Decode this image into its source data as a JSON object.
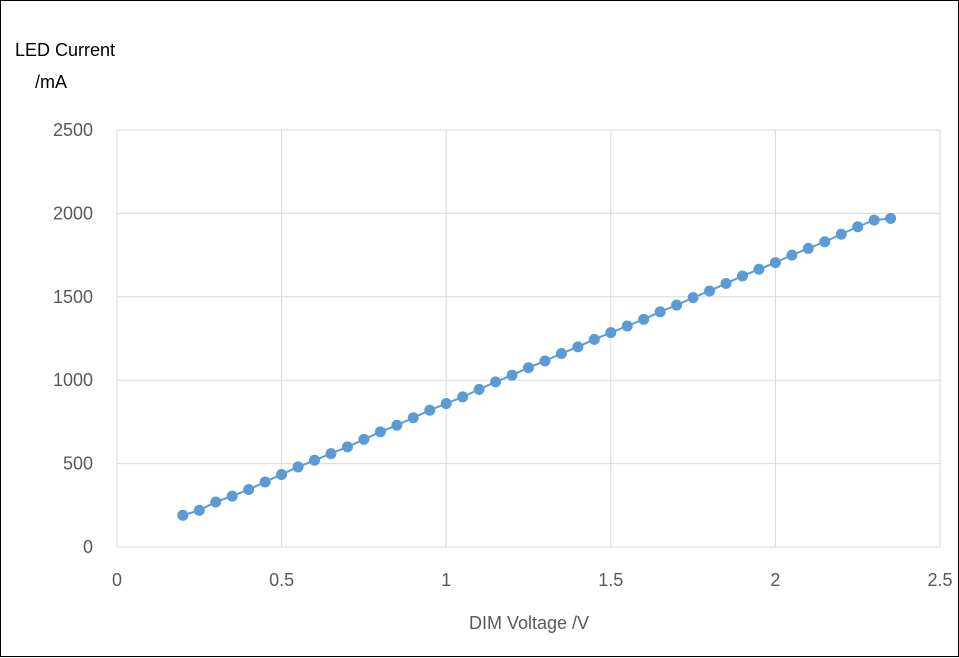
{
  "chart_data": {
    "type": "scatter",
    "title": "",
    "xlabel": "DIM Voltage /V",
    "ylabel_lines": [
      "LED Current",
      "/mA"
    ],
    "xlim": [
      0,
      2.5
    ],
    "ylim": [
      0,
      2500
    ],
    "xticks": [
      0,
      0.5,
      1,
      1.5,
      2,
      2.5
    ],
    "yticks": [
      0,
      500,
      1000,
      1500,
      2000,
      2500
    ],
    "xtick_labels": [
      "0",
      "0.5",
      "1",
      "1.5",
      "2",
      "2.5"
    ],
    "ytick_labels": [
      "0",
      "500",
      "1000",
      "1500",
      "2000",
      "2500"
    ],
    "grid": true,
    "legend": "none",
    "marker_color": "#5B9BD5",
    "line_color": "#5B9BD5",
    "series": [
      {
        "x": [
          0.2,
          0.25,
          0.3,
          0.35,
          0.4,
          0.45,
          0.5,
          0.55,
          0.6,
          0.65,
          0.7,
          0.75,
          0.8,
          0.85,
          0.9,
          0.95,
          1.0,
          1.05,
          1.1,
          1.15,
          1.2,
          1.25,
          1.3,
          1.35,
          1.4,
          1.45,
          1.5,
          1.55,
          1.6,
          1.65,
          1.7,
          1.75,
          1.8,
          1.85,
          1.9,
          1.95,
          2.0,
          2.05,
          2.1,
          2.15,
          2.2,
          2.25,
          2.3,
          2.35
        ],
        "y": [
          190,
          220,
          270,
          305,
          345,
          390,
          435,
          480,
          520,
          560,
          600,
          645,
          690,
          730,
          775,
          820,
          860,
          900,
          945,
          990,
          1030,
          1075,
          1115,
          1160,
          1200,
          1245,
          1285,
          1325,
          1365,
          1410,
          1450,
          1495,
          1535,
          1580,
          1625,
          1665,
          1705,
          1750,
          1790,
          1830,
          1875,
          1920,
          1960,
          1970
        ]
      }
    ]
  }
}
